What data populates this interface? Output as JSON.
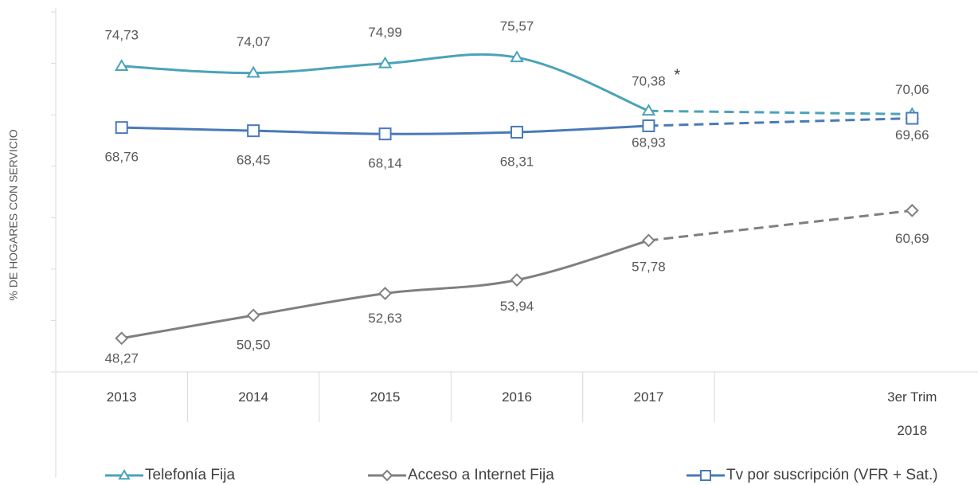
{
  "chart_data": {
    "type": "line",
    "y_label": "% DE HOGARES CON SERVICIO",
    "annotation": "*",
    "categories": [
      "2013",
      "2014",
      "2015",
      "2016",
      "2017",
      null,
      "3er Trim 2018"
    ],
    "ylim": [
      45,
      80
    ],
    "yticks": [
      45,
      50,
      55,
      60,
      65,
      70,
      75,
      80
    ],
    "series": [
      {
        "name": "Telefonía Fija",
        "color": "#4ba3b8",
        "marker": "triangle",
        "values": [
          74.73,
          74.07,
          74.99,
          75.57,
          70.38,
          null,
          70.06
        ],
        "value_labels": [
          "74,73",
          "74,07",
          "74,99",
          "75,57",
          "70,38",
          null,
          "70,06"
        ]
      },
      {
        "name": "Acceso a Internet Fija",
        "color": "#7f7f7f",
        "marker": "diamond",
        "values": [
          48.27,
          50.5,
          52.63,
          53.94,
          57.78,
          null,
          60.69
        ],
        "value_labels": [
          "48,27",
          "50,50",
          "52,63",
          "53,94",
          "57,78",
          null,
          "60,69"
        ]
      },
      {
        "name": "Tv por suscripción (VFR + Sat.)",
        "color": "#4a7ab8",
        "marker": "square",
        "values": [
          68.76,
          68.45,
          68.14,
          68.31,
          68.93,
          null,
          69.66
        ],
        "value_labels": [
          "68,76",
          "68,45",
          "68,14",
          "68,31",
          "68,93",
          null,
          "69,66"
        ]
      }
    ]
  }
}
